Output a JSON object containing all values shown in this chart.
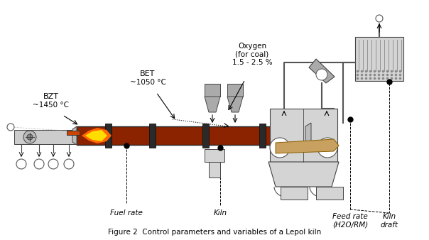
{
  "title": "Figure 2  Control parameters and variables of a Lepol kiln",
  "background_color": "#ffffff",
  "kiln_color": "#8B2200",
  "gray_light": "#d4d4d4",
  "gray_mid": "#aaaaaa",
  "gray_dark": "#888888",
  "tan_color": "#c8a060",
  "flame_orange": "#ff6600",
  "flame_yellow": "#ffdd00",
  "text_color": "#000000",
  "label_fontsize": 7.5,
  "title_fontsize": 7.5,
  "labels": {
    "BZT": "BZT",
    "BZT_temp": "~1450 °C",
    "BET": "BET",
    "BET_temp": "~1050 °C",
    "oxygen": "Oxygen\n(for coal)\n1.5 - 2.5 %",
    "fuel_rate": "Fuel rate",
    "kiln": "Kiln",
    "feed_rate": "Feed rate\n(H2O/RM)",
    "kiln_draft": "Kiln\ndraft"
  }
}
